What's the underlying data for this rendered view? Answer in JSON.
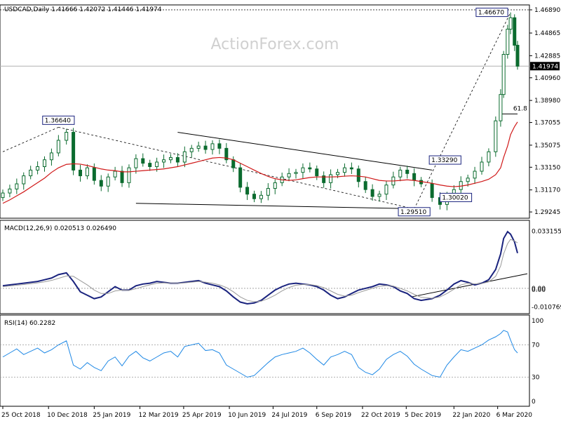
{
  "watermark": "ActionForex.com",
  "colors": {
    "price": "#0b6b2e",
    "ma": "#d01818",
    "macd": "#1a237e",
    "signal": "#9a9a9a",
    "rsi": "#1e88e5",
    "frame": "#000000",
    "label_border": "#1a237e",
    "trendline": "#000000",
    "tag_bg": "#000000",
    "tag_fg": "#ffffff"
  },
  "chart_data": [
    {
      "type": "candlestick",
      "name": "price",
      "header": "USDCAD,Daily  1.41666 1.42072 1.41446 1.41974",
      "ylim": [
        1.2925,
        1.4689
      ],
      "y_ticks": [
        "1.46890",
        "1.44865",
        "1.42885",
        "1.40960",
        "1.38980",
        "1.37055",
        "1.35075",
        "1.33150",
        "1.31170",
        "1.29245"
      ],
      "current_price": "1.41974",
      "x_dates": [
        "2018-10-25",
        "2018-11-01",
        "2018-11-08",
        "2018-11-15",
        "2018-11-22",
        "2018-11-29",
        "2018-12-06",
        "2018-12-13",
        "2018-12-20",
        "2018-12-28",
        "2019-01-04",
        "2019-01-11",
        "2019-01-18",
        "2019-01-25",
        "2019-02-01",
        "2019-02-08",
        "2019-02-15",
        "2019-02-22",
        "2019-03-01",
        "2019-03-08",
        "2019-03-15",
        "2019-03-22",
        "2019-03-29",
        "2019-04-05",
        "2019-04-12",
        "2019-04-19",
        "2019-04-26",
        "2019-05-03",
        "2019-05-10",
        "2019-05-17",
        "2019-05-24",
        "2019-05-31",
        "2019-06-07",
        "2019-06-14",
        "2019-06-21",
        "2019-06-28",
        "2019-07-05",
        "2019-07-12",
        "2019-07-19",
        "2019-07-26",
        "2019-08-02",
        "2019-08-09",
        "2019-08-16",
        "2019-08-23",
        "2019-08-30",
        "2019-09-06",
        "2019-09-13",
        "2019-09-20",
        "2019-09-27",
        "2019-10-04",
        "2019-10-11",
        "2019-10-18",
        "2019-10-25",
        "2019-11-01",
        "2019-11-08",
        "2019-11-15",
        "2019-11-22",
        "2019-11-29",
        "2019-12-06",
        "2019-12-13",
        "2019-12-20",
        "2019-12-31",
        "2020-01-08",
        "2020-01-15",
        "2020-01-22",
        "2020-01-29",
        "2020-02-05",
        "2020-02-12",
        "2020-02-19",
        "2020-02-26",
        "2020-03-04",
        "2020-03-09",
        "2020-03-12",
        "2020-03-16",
        "2020-03-19",
        "2020-03-23",
        "2020-03-26"
      ],
      "close": [
        1.309,
        1.3125,
        1.317,
        1.324,
        1.329,
        1.332,
        1.338,
        1.344,
        1.355,
        1.362,
        1.329,
        1.324,
        1.331,
        1.32,
        1.315,
        1.323,
        1.328,
        1.318,
        1.331,
        1.339,
        1.335,
        1.332,
        1.336,
        1.338,
        1.34,
        1.336,
        1.345,
        1.348,
        1.35,
        1.347,
        1.352,
        1.348,
        1.338,
        1.331,
        1.314,
        1.308,
        1.304,
        1.307,
        1.313,
        1.318,
        1.323,
        1.326,
        1.327,
        1.331,
        1.33,
        1.324,
        1.318,
        1.325,
        1.327,
        1.331,
        1.33,
        1.319,
        1.312,
        1.306,
        1.308,
        1.316,
        1.323,
        1.329,
        1.326,
        1.32,
        1.317,
        1.305,
        1.299,
        1.307,
        1.312,
        1.319,
        1.322,
        1.328,
        1.336,
        1.345,
        1.372,
        1.395,
        1.43,
        1.452,
        1.462,
        1.438,
        1.4197
      ],
      "ma": [
        1.3,
        1.303,
        1.3065,
        1.31,
        1.314,
        1.318,
        1.322,
        1.327,
        1.331,
        1.334,
        1.3345,
        1.3342,
        1.333,
        1.3315,
        1.33,
        1.329,
        1.3285,
        1.3275,
        1.3275,
        1.328,
        1.3285,
        1.329,
        1.3295,
        1.33,
        1.331,
        1.332,
        1.3335,
        1.335,
        1.3365,
        1.338,
        1.3395,
        1.34,
        1.3395,
        1.338,
        1.335,
        1.332,
        1.329,
        1.326,
        1.3235,
        1.3215,
        1.3205,
        1.32,
        1.3205,
        1.3215,
        1.3225,
        1.323,
        1.323,
        1.323,
        1.3232,
        1.3237,
        1.324,
        1.3237,
        1.323,
        1.3215,
        1.32,
        1.3195,
        1.3195,
        1.32,
        1.3205,
        1.32,
        1.319,
        1.3175,
        1.316,
        1.315,
        1.3145,
        1.315,
        1.316,
        1.3175,
        1.319,
        1.321,
        1.325,
        1.331,
        1.34,
        1.35,
        1.36,
        1.367,
        1.371
      ],
      "annotations": [
        {
          "text": "1.36640",
          "date": "2018-12-20",
          "price": 1.3664
        },
        {
          "text": "1.46670",
          "date": "2020-03-19",
          "price": 1.4667
        },
        {
          "text": "1.33290",
          "date": "2019-12-31",
          "price": 1.3329
        },
        {
          "text": "1.30020",
          "date": "2020-01-15",
          "price": 1.3002
        },
        {
          "text": "1.29510",
          "date": "2019-12-13",
          "price": 1.2951
        },
        {
          "text": "61.8",
          "date": "2020-03-16",
          "price": 1.378
        }
      ]
    },
    {
      "type": "line",
      "name": "MACD",
      "header": "MACD(12,26,9) 0.020513 0.026490",
      "ylim": [
        -0.0135,
        0.0355
      ],
      "y_ticks": [
        "0.033155",
        "0.00",
        "0.00",
        "-0.010769"
      ],
      "x_dates_ref": "price",
      "series": [
        {
          "name": "macd",
          "values": [
            0.0015,
            0.002,
            0.0025,
            0.003,
            0.0035,
            0.004,
            0.005,
            0.006,
            0.008,
            0.009,
            0.004,
            -0.002,
            -0.004,
            -0.006,
            -0.005,
            -0.002,
            0.001,
            -0.001,
            -0.001,
            0.0015,
            0.0025,
            0.003,
            0.004,
            0.0035,
            0.003,
            0.003,
            0.0035,
            0.004,
            0.0045,
            0.003,
            0.002,
            0.001,
            -0.0015,
            -0.005,
            -0.008,
            -0.009,
            -0.0085,
            -0.007,
            -0.004,
            -0.001,
            0.001,
            0.0025,
            0.003,
            0.0025,
            0.002,
            0.001,
            -0.001,
            -0.004,
            -0.006,
            -0.005,
            -0.003,
            -0.001,
            0.0,
            0.001,
            0.0025,
            0.002,
            0.001,
            -0.0015,
            -0.003,
            -0.006,
            -0.007,
            -0.006,
            -0.004,
            -0.001,
            0.0025,
            0.0045,
            0.0035,
            0.002,
            0.003,
            0.005,
            0.011,
            0.02,
            0.029,
            0.033,
            0.0315,
            0.027,
            0.0205
          ]
        },
        {
          "name": "signal",
          "values": [
            0.001,
            0.0014,
            0.0018,
            0.0022,
            0.0027,
            0.0032,
            0.0038,
            0.0046,
            0.0058,
            0.0072,
            0.007,
            0.0045,
            0.002,
            -0.001,
            -0.003,
            -0.003,
            -0.0015,
            -0.001,
            -0.0012,
            -0.0002,
            0.001,
            0.002,
            0.003,
            0.0032,
            0.0031,
            0.003,
            0.0032,
            0.0036,
            0.004,
            0.0036,
            0.003,
            0.002,
            0.0005,
            -0.002,
            -0.005,
            -0.007,
            -0.0078,
            -0.0075,
            -0.006,
            -0.004,
            -0.0015,
            0.0005,
            0.0018,
            0.0022,
            0.0022,
            0.0016,
            0.0004,
            -0.0015,
            -0.0035,
            -0.0045,
            -0.004,
            -0.0025,
            -0.0012,
            0.0,
            0.0012,
            0.0016,
            0.0013,
            0.0,
            -0.0015,
            -0.0035,
            -0.0052,
            -0.0058,
            -0.005,
            -0.003,
            -0.0005,
            0.002,
            0.003,
            0.0026,
            0.0028,
            0.0038,
            0.007,
            0.013,
            0.02,
            0.026,
            0.0285,
            0.0275,
            0.0265
          ]
        }
      ]
    },
    {
      "type": "line",
      "name": "RSI",
      "header": "RSI(14) 60.2282",
      "ylim": [
        0,
        100
      ],
      "y_ticks": [
        "100",
        "70",
        "30",
        "0"
      ],
      "levels": [
        70,
        30
      ],
      "x_dates_ref": "price",
      "series": [
        {
          "name": "rsi",
          "values": [
            55,
            60,
            65,
            58,
            62,
            66,
            60,
            64,
            70,
            75,
            45,
            40,
            48,
            42,
            38,
            50,
            55,
            44,
            56,
            62,
            54,
            50,
            55,
            60,
            62,
            55,
            68,
            70,
            72,
            63,
            64,
            60,
            45,
            40,
            35,
            30,
            32,
            40,
            48,
            55,
            58,
            60,
            62,
            66,
            60,
            52,
            45,
            55,
            58,
            62,
            58,
            42,
            36,
            33,
            40,
            52,
            58,
            62,
            56,
            46,
            40,
            32,
            30,
            45,
            55,
            64,
            62,
            66,
            70,
            76,
            80,
            84,
            88,
            86,
            76,
            64,
            60
          ]
        }
      ]
    }
  ],
  "x_tick_labels": [
    {
      "label": "25 Oct 2018",
      "date": "2018-10-25"
    },
    {
      "label": "10 Dec 2018",
      "date": "2018-12-10"
    },
    {
      "label": "25 Jan 2019",
      "date": "2019-01-25"
    },
    {
      "label": "12 Mar 2019",
      "date": "2019-03-12"
    },
    {
      "label": "25 Apr 2019",
      "date": "2019-04-25"
    },
    {
      "label": "10 Jun 2019",
      "date": "2019-06-10"
    },
    {
      "label": "24 Jul 2019",
      "date": "2019-07-24"
    },
    {
      "label": "6 Sep 2019",
      "date": "2019-09-06"
    },
    {
      "label": "22 Oct 2019",
      "date": "2019-10-22"
    },
    {
      "label": "5 Dec 2019",
      "date": "2019-12-05"
    },
    {
      "label": "22 Jan 2020",
      "date": "2020-01-22"
    },
    {
      "label": "6 Mar 2020",
      "date": "2020-03-06"
    }
  ]
}
